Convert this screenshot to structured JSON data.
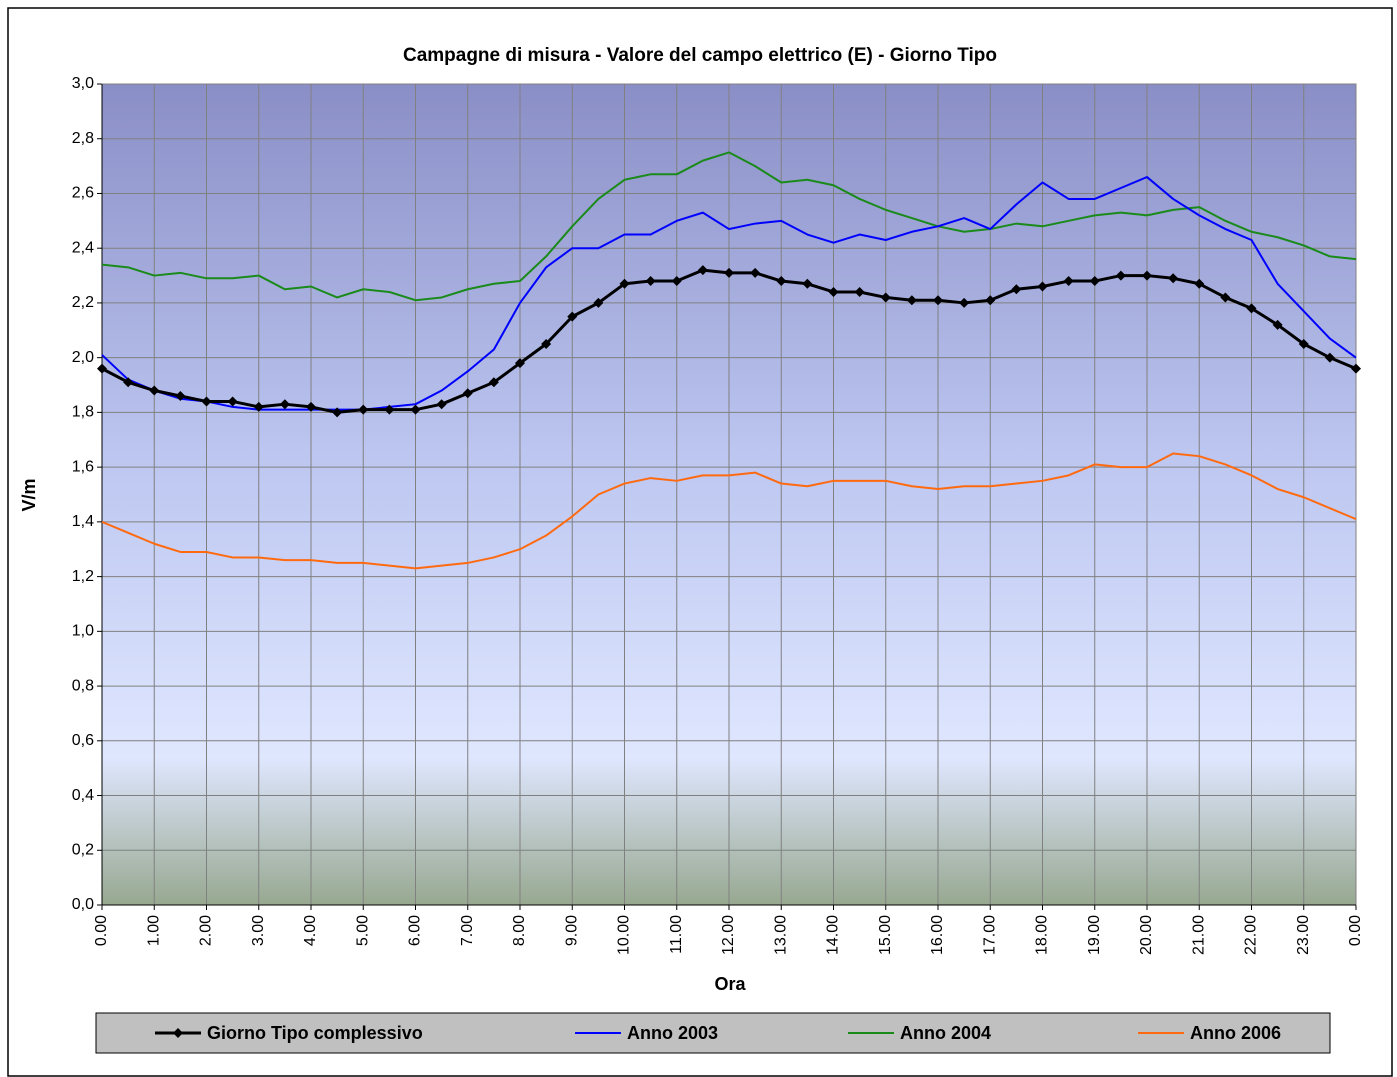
{
  "chart_data": {
    "type": "line",
    "title": "Campagne di misura - Valore del campo elettrico (E) - Giorno Tipo",
    "x_label": "Ora",
    "y_label": "V/m",
    "x": [
      0,
      0.5,
      1,
      1.5,
      2,
      2.5,
      3,
      3.5,
      4,
      4.5,
      5,
      5.5,
      6,
      6.5,
      7,
      7.5,
      8,
      8.5,
      9,
      9.5,
      10,
      10.5,
      11,
      11.5,
      12,
      12.5,
      13,
      13.5,
      14,
      14.5,
      15,
      15.5,
      16,
      16.5,
      17,
      17.5,
      18,
      18.5,
      19,
      19.5,
      20,
      20.5,
      21,
      21.5,
      22,
      22.5,
      23,
      23.5,
      24
    ],
    "series": [
      {
        "name": "Giorno Tipo complessivo",
        "color": "#000000",
        "marker": "diamond",
        "values": [
          1.96,
          1.91,
          1.88,
          1.86,
          1.84,
          1.84,
          1.82,
          1.83,
          1.82,
          1.8,
          1.81,
          1.81,
          1.81,
          1.83,
          1.87,
          1.91,
          1.98,
          2.05,
          2.15,
          2.2,
          2.27,
          2.28,
          2.28,
          2.32,
          2.31,
          2.31,
          2.28,
          2.27,
          2.24,
          2.24,
          2.22,
          2.21,
          2.21,
          2.2,
          2.21,
          2.25,
          2.26,
          2.28,
          2.28,
          2.3,
          2.3,
          2.29,
          2.27,
          2.22,
          2.18,
          2.12,
          2.05,
          2.0,
          1.96
        ]
      },
      {
        "name": "Anno 2003",
        "color": "#0000ff",
        "values": [
          2.01,
          1.92,
          1.88,
          1.85,
          1.84,
          1.82,
          1.81,
          1.81,
          1.81,
          1.81,
          1.81,
          1.82,
          1.83,
          1.88,
          1.95,
          2.03,
          2.2,
          2.33,
          2.4,
          2.4,
          2.45,
          2.45,
          2.5,
          2.53,
          2.47,
          2.49,
          2.5,
          2.45,
          2.42,
          2.45,
          2.43,
          2.46,
          2.48,
          2.51,
          2.47,
          2.56,
          2.64,
          2.58,
          2.58,
          2.62,
          2.66,
          2.58,
          2.52,
          2.47,
          2.43,
          2.27,
          2.17,
          2.07,
          2.0
        ]
      },
      {
        "name": "Anno 2004",
        "color": "#1a8a1a",
        "values": [
          2.34,
          2.33,
          2.3,
          2.31,
          2.29,
          2.29,
          2.3,
          2.25,
          2.26,
          2.22,
          2.25,
          2.24,
          2.21,
          2.22,
          2.25,
          2.27,
          2.28,
          2.37,
          2.48,
          2.58,
          2.65,
          2.67,
          2.67,
          2.72,
          2.75,
          2.7,
          2.64,
          2.65,
          2.63,
          2.58,
          2.54,
          2.51,
          2.48,
          2.46,
          2.47,
          2.49,
          2.48,
          2.5,
          2.52,
          2.53,
          2.52,
          2.54,
          2.55,
          2.5,
          2.46,
          2.44,
          2.41,
          2.37,
          2.36
        ]
      },
      {
        "name": "Anno 2006",
        "color": "#ff6a10",
        "values": [
          1.4,
          1.36,
          1.32,
          1.29,
          1.29,
          1.27,
          1.27,
          1.26,
          1.26,
          1.25,
          1.25,
          1.24,
          1.23,
          1.24,
          1.25,
          1.27,
          1.3,
          1.35,
          1.42,
          1.5,
          1.54,
          1.56,
          1.55,
          1.57,
          1.57,
          1.58,
          1.54,
          1.53,
          1.55,
          1.55,
          1.55,
          1.53,
          1.52,
          1.53,
          1.53,
          1.54,
          1.55,
          1.57,
          1.61,
          1.6,
          1.6,
          1.65,
          1.64,
          1.61,
          1.57,
          1.52,
          1.49,
          1.45,
          1.41
        ]
      }
    ],
    "xlim": [
      0,
      24
    ],
    "xticks": [
      {
        "value": 0,
        "label": "0.00"
      },
      {
        "value": 1,
        "label": "1.00"
      },
      {
        "value": 2,
        "label": "2.00"
      },
      {
        "value": 3,
        "label": "3.00"
      },
      {
        "value": 4,
        "label": "4.00"
      },
      {
        "value": 5,
        "label": "5.00"
      },
      {
        "value": 6,
        "label": "6.00"
      },
      {
        "value": 7,
        "label": "7.00"
      },
      {
        "value": 8,
        "label": "8.00"
      },
      {
        "value": 9,
        "label": "9.00"
      },
      {
        "value": 10,
        "label": "10.00"
      },
      {
        "value": 11,
        "label": "11.00"
      },
      {
        "value": 12,
        "label": "12.00"
      },
      {
        "value": 13,
        "label": "13.00"
      },
      {
        "value": 14,
        "label": "14.00"
      },
      {
        "value": 15,
        "label": "15.00"
      },
      {
        "value": 16,
        "label": "16.00"
      },
      {
        "value": 17,
        "label": "17.00"
      },
      {
        "value": 18,
        "label": "18.00"
      },
      {
        "value": 19,
        "label": "19.00"
      },
      {
        "value": 20,
        "label": "20.00"
      },
      {
        "value": 21,
        "label": "21.00"
      },
      {
        "value": 22,
        "label": "22.00"
      },
      {
        "value": 23,
        "label": "23.00"
      },
      {
        "value": 24,
        "label": "0.00"
      }
    ],
    "ylim": [
      0,
      3
    ],
    "yticks": [
      {
        "value": 0,
        "label": "0,0"
      },
      {
        "value": 0.2,
        "label": "0,2"
      },
      {
        "value": 0.4,
        "label": "0,4"
      },
      {
        "value": 0.6,
        "label": "0,6"
      },
      {
        "value": 0.8,
        "label": "0,8"
      },
      {
        "value": 1,
        "label": "1,0"
      },
      {
        "value": 1.2,
        "label": "1,2"
      },
      {
        "value": 1.4,
        "label": "1,4"
      },
      {
        "value": 1.6,
        "label": "1,6"
      },
      {
        "value": 1.8,
        "label": "1,8"
      },
      {
        "value": 2,
        "label": "2,0"
      },
      {
        "value": 2.2,
        "label": "2,2"
      },
      {
        "value": 2.4,
        "label": "2,4"
      },
      {
        "value": 2.6,
        "label": "2,6"
      },
      {
        "value": 2.8,
        "label": "2,8"
      },
      {
        "value": 3,
        "label": "3,0"
      }
    ],
    "grid": true,
    "legend": "bottom"
  }
}
